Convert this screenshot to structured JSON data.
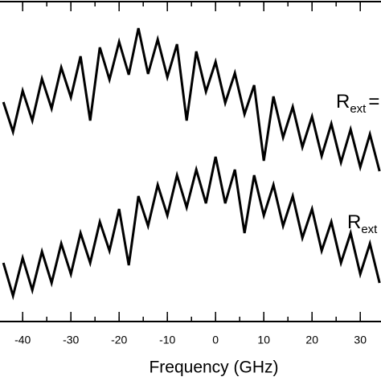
{
  "chart_data": {
    "type": "line",
    "xlabel": "Frequency (GHz)",
    "x": [
      -44,
      -42,
      -40,
      -38,
      -36,
      -34,
      -32,
      -30,
      -28,
      -26,
      -24,
      -22,
      -20,
      -18,
      -16,
      -14,
      -12,
      -10,
      -8,
      -6,
      -4,
      -2,
      0,
      2,
      4,
      6,
      8,
      10,
      12,
      14,
      16,
      18,
      20,
      22,
      24,
      26,
      28,
      30,
      32,
      34
    ],
    "series": [
      {
        "color": "#000000",
        "values": [
          273,
          236,
          287,
          250,
          302,
          265,
          316,
          279,
          330,
          250,
          341,
          301,
          348,
          307,
          365,
          308,
          351,
          304,
          345,
          250,
          336,
          286,
          323,
          272,
          309,
          258,
          294,
          200,
          280,
          229,
          267,
          217,
          255,
          206,
          246,
          198,
          239,
          192,
          233,
          187
        ]
      },
      {
        "color": "#000000",
        "values": [
          73,
          32,
          79,
          39,
          87,
          48,
          97,
          59,
          110,
          73,
          124,
          88,
          140,
          70,
          156,
          119,
          170,
          132,
          182,
          142,
          189,
          147,
          205,
          147,
          189,
          110,
          182,
          132,
          170,
          119,
          156,
          104,
          140,
          88,
          124,
          73,
          110,
          59,
          97,
          48
        ]
      }
    ],
    "annotations": [
      {
        "main": "R",
        "sub": "ext",
        "tail": "="
      },
      {
        "main": "R",
        "sub": "ext"
      }
    ],
    "xlim": [
      -44.7,
      34.3
    ],
    "ylim": [
      0,
      400
    ],
    "xticks": [
      -40,
      -30,
      -20,
      -10,
      0,
      10,
      20,
      30
    ],
    "xminorticks": [
      -40,
      -35,
      -30,
      -25,
      -20,
      -15,
      -10,
      -5,
      0,
      5,
      10,
      15,
      20,
      25,
      30
    ]
  }
}
